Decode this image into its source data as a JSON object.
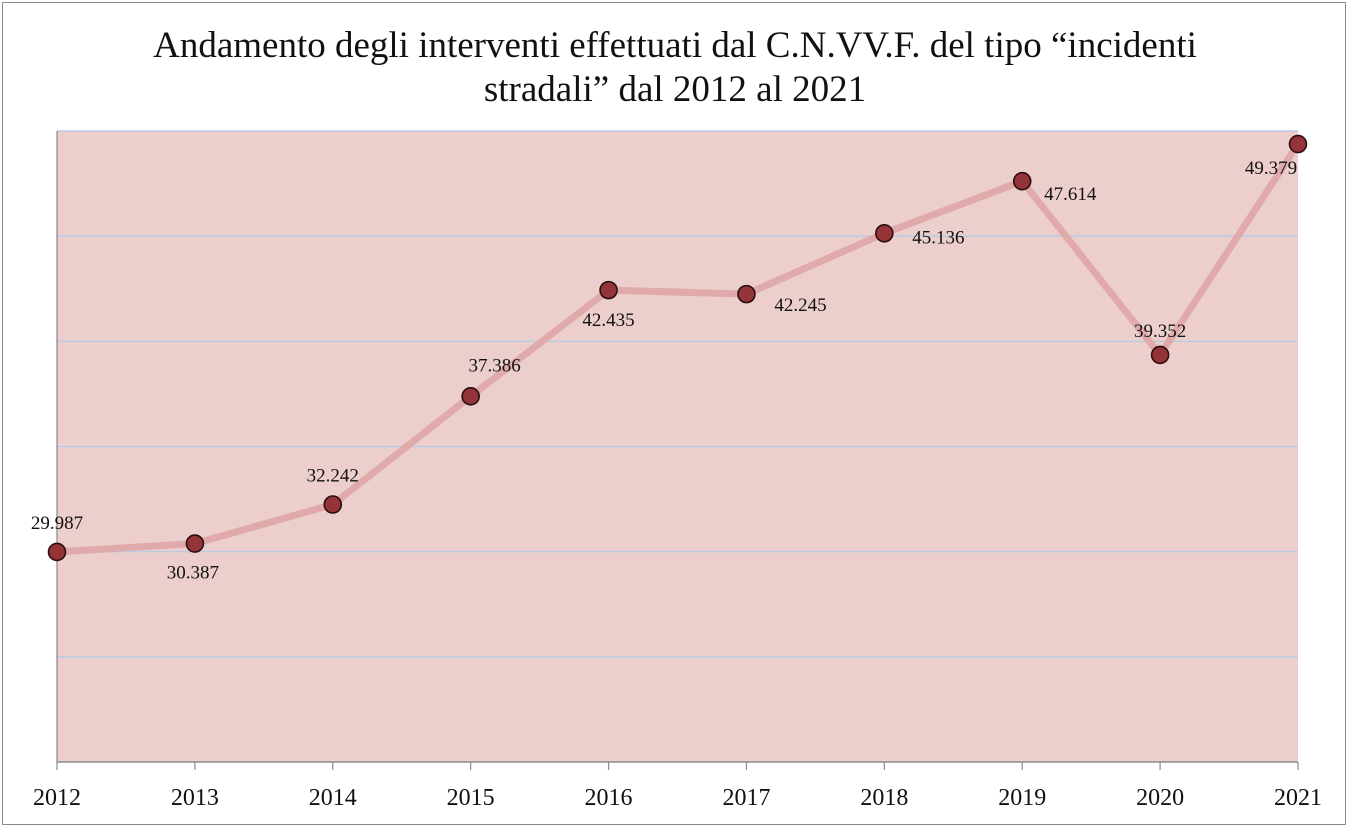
{
  "chart_data": {
    "type": "line",
    "title_lines": [
      "Andamento degli interventi effettuati dal C.N.VV.F. del tipo “incidenti",
      "stradali” dal 2012 al 2021"
    ],
    "categories": [
      "2012",
      "2013",
      "2014",
      "2015",
      "2016",
      "2017",
      "2018",
      "2019",
      "2020",
      "2021"
    ],
    "series": [
      {
        "values": [
          29987,
          30387,
          32242,
          37386,
          42435,
          42245,
          45136,
          47614,
          39352,
          49379
        ],
        "labels": [
          "29.987",
          "30.387",
          "32.242",
          "37.386",
          "42.435",
          "42.245",
          "45.136",
          "47.614",
          "39.352",
          "49.379"
        ]
      }
    ],
    "ylim": [
      20000,
      50000
    ],
    "y_gridline_step": 5000,
    "y_axis_labels_shown": false,
    "grid": true,
    "legend": "none",
    "colors": {
      "plot_background": "#eccfcc",
      "line": "#e0aaaa",
      "marker_fill": "#943438",
      "marker_stroke": "#2a0f10",
      "gridline": "#b9cbe2",
      "axis": "#8a8a8a"
    }
  }
}
